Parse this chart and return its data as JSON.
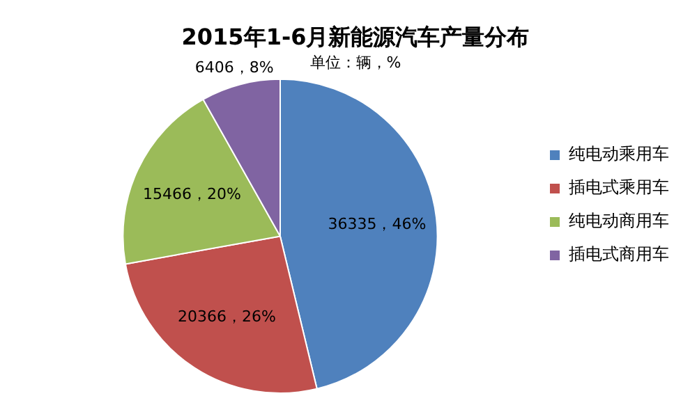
{
  "chart_data": {
    "type": "pie",
    "title": "2015年1-6月新能源汽车产量分布",
    "subtitle": "单位：辆，%",
    "categories": [
      "纯电动乘用车",
      "插电式乘用车",
      "纯电动商用车",
      "插电式商用车"
    ],
    "values": [
      36335,
      20366,
      15466,
      6406
    ],
    "colors": [
      "#4f81bd",
      "#c0504d",
      "#9bbb59",
      "#8064a2"
    ],
    "value_labels": [
      "36335，46%",
      "20366，26%",
      "15466，20%",
      "6406，8%"
    ],
    "legend": "right"
  }
}
